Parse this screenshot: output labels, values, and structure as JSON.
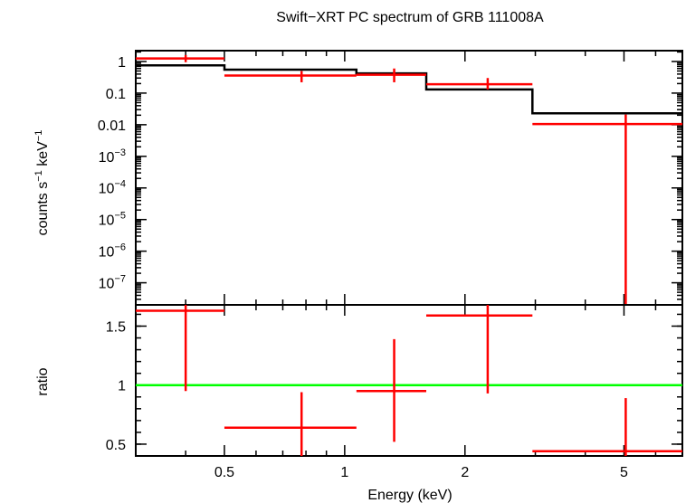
{
  "chart_data": [
    {
      "type": "line",
      "panel": "spectrum",
      "title": "Swift−XRT PC spectrum of GRB 111008A",
      "xlabel": "Energy (keV)",
      "ylabel_main": "counts s",
      "ylabel_exp1": "−1",
      "ylabel_mid": " keV",
      "ylabel_exp2": "−1",
      "x_scale": "log",
      "y_scale": "log",
      "xlim": [
        0.3,
        7.0
      ],
      "ylim": [
        2e-08,
        2.2
      ],
      "y_ticks": [
        {
          "value": 1,
          "base": "1",
          "exp": ""
        },
        {
          "value": 0.1,
          "base": "0.1",
          "exp": ""
        },
        {
          "value": 0.01,
          "base": "0.01",
          "exp": ""
        },
        {
          "value": 0.001,
          "base": "10",
          "exp": "−3"
        },
        {
          "value": 0.0001,
          "base": "10",
          "exp": "−4"
        },
        {
          "value": 1e-05,
          "base": "10",
          "exp": "−5"
        },
        {
          "value": 1e-06,
          "base": "10",
          "exp": "−6"
        },
        {
          "value": 1e-07,
          "base": "10",
          "exp": "−7"
        }
      ],
      "series": [
        {
          "role": "data",
          "color": "#ff0000",
          "points": [
            {
              "x_lo": 0.3,
              "x": 0.4,
              "x_hi": 0.5,
              "y": 1.25,
              "y_lo": 0.95,
              "y_hi": 1.6
            },
            {
              "x_lo": 0.5,
              "x": 0.78,
              "x_hi": 1.07,
              "y": 0.36,
              "y_lo": 0.22,
              "y_hi": 0.5
            },
            {
              "x_lo": 1.07,
              "x": 1.33,
              "x_hi": 1.6,
              "y": 0.38,
              "y_lo": 0.22,
              "y_hi": 0.6
            },
            {
              "x_lo": 1.6,
              "x": 2.28,
              "x_hi": 2.95,
              "y": 0.19,
              "y_lo": 0.13,
              "y_hi": 0.3
            },
            {
              "x_lo": 2.95,
              "x": 5.05,
              "x_hi": 7.0,
              "y": 0.0105,
              "y_lo": 2e-08,
              "y_hi": 0.021
            }
          ]
        },
        {
          "role": "model",
          "color": "#000000",
          "steps": [
            {
              "x_lo": 0.3,
              "x_hi": 0.5,
              "y": 0.75
            },
            {
              "x_lo": 0.5,
              "x_hi": 1.07,
              "y": 0.55
            },
            {
              "x_lo": 1.07,
              "x_hi": 1.6,
              "y": 0.42
            },
            {
              "x_lo": 1.6,
              "x_hi": 2.95,
              "y": 0.13
            },
            {
              "x_lo": 2.95,
              "x_hi": 7.0,
              "y": 0.023
            }
          ]
        }
      ]
    },
    {
      "type": "line",
      "panel": "ratio",
      "ylabel": "ratio",
      "x_scale": "log",
      "xlim": [
        0.3,
        7.0
      ],
      "ylim": [
        0.4,
        1.68
      ],
      "y_ticks": [
        {
          "value": 0.5,
          "label": "0.5"
        },
        {
          "value": 1,
          "label": "1"
        },
        {
          "value": 1.5,
          "label": "1.5"
        }
      ],
      "x_ticks": [
        {
          "value": 0.5,
          "label": "0.5"
        },
        {
          "value": 1,
          "label": "1"
        },
        {
          "value": 2,
          "label": "2"
        },
        {
          "value": 5,
          "label": "5"
        }
      ],
      "reference_line": {
        "y": 1,
        "color": "#00ff00"
      },
      "series": [
        {
          "role": "data",
          "color": "#ff0000",
          "points": [
            {
              "x_lo": 0.3,
              "x": 0.4,
              "x_hi": 0.5,
              "y": 1.63,
              "y_lo": 0.95,
              "y_hi": 1.68
            },
            {
              "x_lo": 0.5,
              "x": 0.78,
              "x_hi": 1.07,
              "y": 0.64,
              "y_lo": 0.4,
              "y_hi": 0.94
            },
            {
              "x_lo": 1.07,
              "x": 1.33,
              "x_hi": 1.6,
              "y": 0.95,
              "y_lo": 0.52,
              "y_hi": 1.39
            },
            {
              "x_lo": 1.6,
              "x": 2.28,
              "x_hi": 2.95,
              "y": 1.59,
              "y_lo": 0.93,
              "y_hi": 1.68
            },
            {
              "x_lo": 2.95,
              "x": 5.05,
              "x_hi": 7.0,
              "y": 0.44,
              "y_lo": 0.4,
              "y_hi": 0.89
            }
          ]
        }
      ]
    }
  ]
}
